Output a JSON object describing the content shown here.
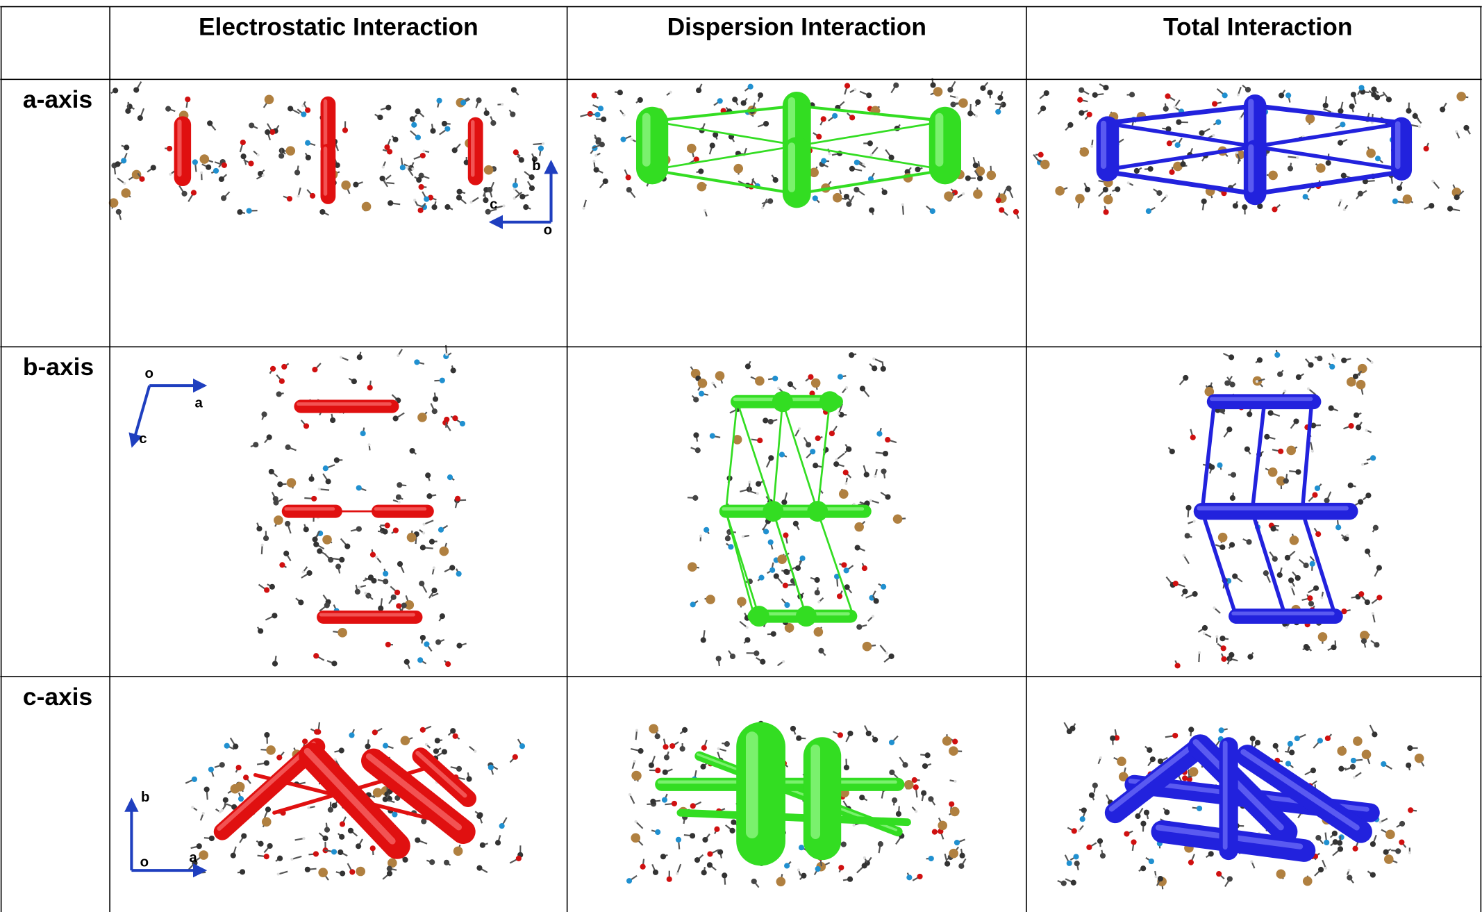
{
  "table": {
    "columns": [
      "Electrostatic Interaction",
      "Dispersion Interaction",
      "Total Interaction"
    ],
    "rows": [
      {
        "label": "a-axis",
        "axes": [
          "b",
          "c",
          "o"
        ]
      },
      {
        "label": "b-axis",
        "axes": [
          "o",
          "a",
          "c"
        ]
      },
      {
        "label": "c-axis",
        "axes": [
          "b",
          "o",
          "a"
        ]
      }
    ]
  }
}
